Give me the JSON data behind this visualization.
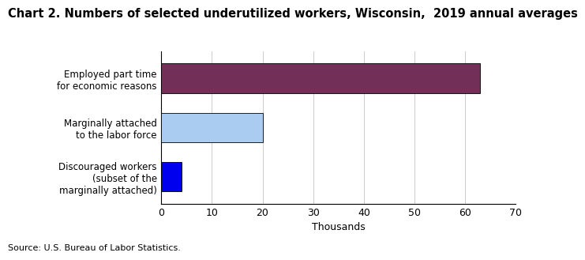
{
  "title": "Chart 2. Numbers of selected underutilized workers, Wisconsin,  2019 annual averages",
  "categories": [
    "Discouraged workers\n(subset of the\nmarginally attached)",
    "Marginally attached\nto the labor force",
    "Employed part time\nfor economic reasons"
  ],
  "values": [
    4,
    20,
    63
  ],
  "bar_colors": [
    "#0000ee",
    "#aaccf0",
    "#722f57"
  ],
  "xlabel": "Thousands",
  "xlim": [
    0,
    70
  ],
  "xticks": [
    0,
    10,
    20,
    30,
    40,
    50,
    60,
    70
  ],
  "source": "Source: U.S. Bureau of Labor Statistics.",
  "background_color": "#ffffff",
  "title_fontsize": 10.5,
  "label_fontsize": 8.5,
  "tick_fontsize": 9,
  "bar_height": 0.6
}
